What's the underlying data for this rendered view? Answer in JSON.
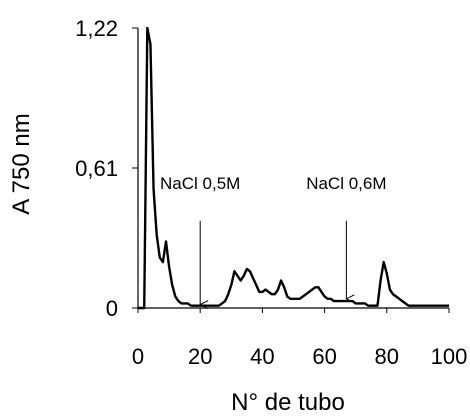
{
  "chart_data": {
    "type": "line",
    "title": "",
    "xlabel": "N° de tubo",
    "ylabel": "A 750 nm",
    "xlim": [
      0,
      100
    ],
    "ylim": [
      0,
      1.22
    ],
    "x_ticks": [
      0,
      20,
      40,
      60,
      80,
      100
    ],
    "y_ticks": [
      0,
      0.61,
      1.22
    ],
    "x_tick_labels": [
      "0",
      "20",
      "40",
      "60",
      "80",
      "100"
    ],
    "y_tick_labels": [
      "0",
      "0,61",
      "1,22"
    ],
    "grid": false,
    "legend": "none",
    "line_color": "#000000",
    "series": [
      {
        "x": [
          0,
          1,
          2,
          3,
          4,
          5,
          6,
          7,
          8,
          9,
          10,
          11,
          12,
          13,
          14,
          15,
          16,
          17,
          18,
          19,
          20,
          21,
          22,
          23,
          24,
          25,
          26,
          27,
          28,
          29,
          30,
          31,
          32,
          33,
          34,
          35,
          36,
          37,
          38,
          39,
          40,
          41,
          42,
          43,
          44,
          45,
          46,
          47,
          48,
          49,
          50,
          51,
          52,
          53,
          54,
          55,
          56,
          57,
          58,
          59,
          60,
          61,
          62,
          63,
          64,
          65,
          66,
          67,
          68,
          69,
          70,
          71,
          72,
          73,
          74,
          75,
          76,
          77,
          78,
          79,
          80,
          81,
          82,
          83,
          84,
          85,
          86,
          87,
          88,
          89,
          90,
          91,
          92,
          93,
          94,
          95,
          96,
          97,
          98,
          99,
          100
        ],
        "values": [
          0,
          0,
          0,
          1.22,
          1.15,
          0.52,
          0.32,
          0.22,
          0.2,
          0.29,
          0.18,
          0.1,
          0.05,
          0.03,
          0.02,
          0.02,
          0.02,
          0.01,
          0.01,
          0.01,
          0.01,
          0.01,
          0.01,
          0.01,
          0.01,
          0.01,
          0.01,
          0.02,
          0.03,
          0.06,
          0.1,
          0.16,
          0.14,
          0.12,
          0.14,
          0.17,
          0.16,
          0.13,
          0.1,
          0.07,
          0.07,
          0.08,
          0.07,
          0.06,
          0.06,
          0.08,
          0.12,
          0.09,
          0.05,
          0.04,
          0.04,
          0.04,
          0.04,
          0.05,
          0.06,
          0.07,
          0.08,
          0.09,
          0.09,
          0.07,
          0.05,
          0.04,
          0.04,
          0.03,
          0.03,
          0.03,
          0.03,
          0.03,
          0.03,
          0.03,
          0.02,
          0.02,
          0.02,
          0.02,
          0.01,
          0.01,
          0.01,
          0.01,
          0.12,
          0.2,
          0.15,
          0.08,
          0.06,
          0.05,
          0.04,
          0.03,
          0.02,
          0.01,
          0.01,
          0.01,
          0.01,
          0.01,
          0.01,
          0.01,
          0.01,
          0.01,
          0.01,
          0.01,
          0.01,
          0.01,
          0.01
        ]
      }
    ],
    "annotations": [
      {
        "text": "NaCl 0,5M",
        "x": 20,
        "arrow_from_y": 0.38,
        "arrow_to_y": 0.015
      },
      {
        "text": "NaCl 0,6M",
        "x": 67,
        "arrow_from_y": 0.38,
        "arrow_to_y": 0.04
      }
    ]
  }
}
